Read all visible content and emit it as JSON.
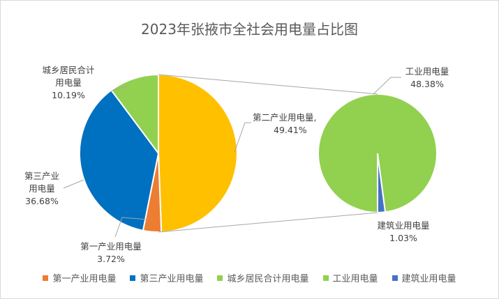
{
  "chart_data": {
    "type": "pie",
    "title": "2023年张掖市全社会用电量占比图",
    "subtype": "pie-of-pie",
    "main_pie": [
      {
        "name": "第二产业用电量",
        "percent": 49.41,
        "color": "#FFC000"
      },
      {
        "name": "第一产业用电量",
        "percent": 3.72,
        "color": "#ED7D31"
      },
      {
        "name": "第三产业用电量",
        "percent": 36.68,
        "color": "#0070C0"
      },
      {
        "name": "城乡居民合计用电量",
        "percent": 10.19,
        "color": "#92D050"
      }
    ],
    "secondary_pie": [
      {
        "name": "工业用电量",
        "percent": 48.38,
        "color": "#92D050"
      },
      {
        "name": "建筑业用电量",
        "percent": 1.03,
        "color": "#4472C4"
      }
    ],
    "labels": {
      "second": {
        "name": "第二产业用电量,",
        "percent": "49.41%"
      },
      "first": {
        "name": "第一产业用电量",
        "percent": "3.72%"
      },
      "third": {
        "name_line1": "第三产业",
        "name_line2": "用电量",
        "percent": "36.68%"
      },
      "resident": {
        "name_line1": "城乡居民合计",
        "name_line2": "用电量",
        "percent": "10.19%"
      },
      "industry": {
        "name": "工业用电量",
        "percent": "48.38%"
      },
      "construction": {
        "name": "建筑业用电量",
        "percent": "1.03%"
      }
    },
    "legend_position": "bottom",
    "legend": [
      {
        "label": "第一产业用电量",
        "color": "#ED7D31"
      },
      {
        "label": "第三产业用电量",
        "color": "#0070C0"
      },
      {
        "label": "城乡居民合计用电量",
        "color": "#92D050"
      },
      {
        "label": "工业用电量",
        "color": "#92D050"
      },
      {
        "label": "建筑业用电量",
        "color": "#4472C4"
      }
    ]
  }
}
